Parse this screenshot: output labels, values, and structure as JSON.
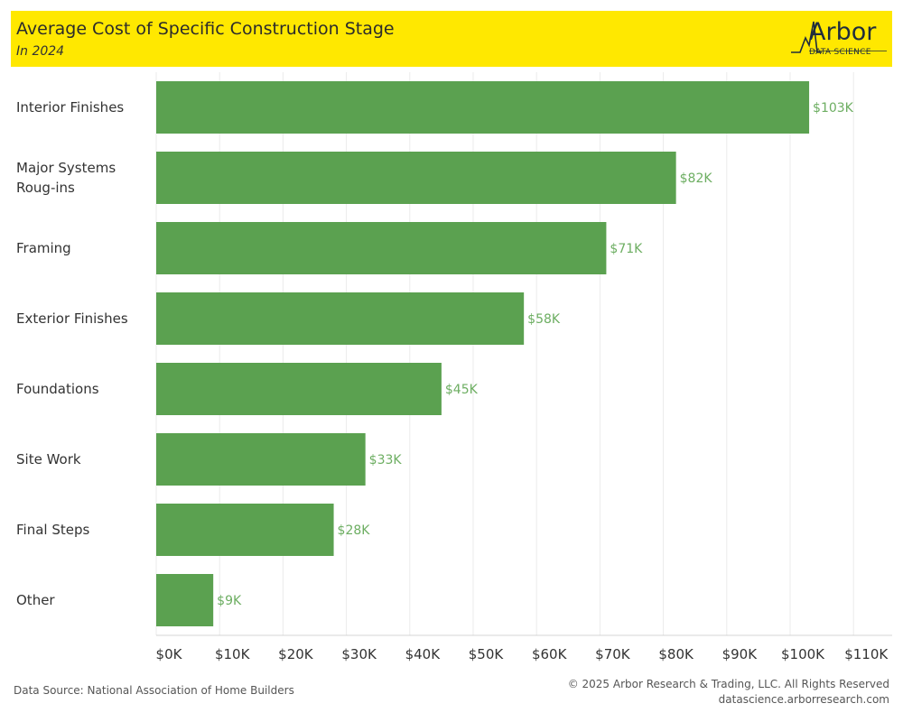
{
  "header": {
    "title": "Average Cost of Specific Construction Stage",
    "subtitle": "In 2024",
    "logo_word": "Arbor",
    "logo_sub": "DATA SCIENCE"
  },
  "footer": {
    "source": "Data Source: National Association of Home Builders",
    "copyright": "© 2025 Arbor Research & Trading, LLC. All Rights Reserved",
    "website": "datascience.arborresearch.com"
  },
  "colors": {
    "header_bg": "#FFE800",
    "bar": "#5BA150",
    "data_label": "#6DAE62",
    "gridline": "#EBEBEB"
  },
  "chart_data": {
    "type": "bar",
    "orientation": "horizontal",
    "categories": [
      [
        "Interior Finishes"
      ],
      [
        "Major Systems",
        "Roug-ins"
      ],
      [
        "Framing"
      ],
      [
        "Exterior Finishes"
      ],
      [
        "Foundations"
      ],
      [
        "Site Work"
      ],
      [
        "Final Steps"
      ],
      [
        "Other"
      ]
    ],
    "values": [
      103,
      82,
      71,
      58,
      45,
      33,
      28,
      9
    ],
    "data_labels": [
      "$103K",
      "$82K",
      "$71K",
      "$58K",
      "$45K",
      "$33K",
      "$28K",
      "$9K"
    ],
    "x_ticks": [
      0,
      10,
      20,
      30,
      40,
      50,
      60,
      70,
      80,
      90,
      100,
      110
    ],
    "x_tick_labels": [
      "$0K",
      "$10K",
      "$20K",
      "$30K",
      "$40K",
      "$50K",
      "$60K",
      "$70K",
      "$80K",
      "$90K",
      "$100K",
      "$110K"
    ],
    "xlim": [
      0,
      115
    ],
    "grid": true,
    "legend": "none"
  }
}
